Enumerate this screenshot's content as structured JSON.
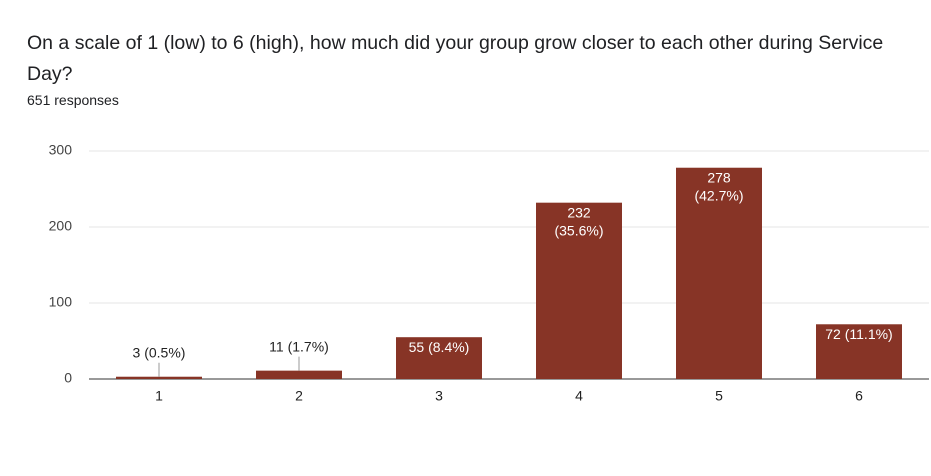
{
  "chart_data": {
    "type": "bar",
    "title": "On a scale of 1 (low) to 6 (high), how much did your group grow closer to each other during Service Day?",
    "subtitle": "651 responses",
    "categories": [
      "1",
      "2",
      "3",
      "4",
      "5",
      "6"
    ],
    "values": [
      3,
      11,
      55,
      232,
      278,
      72
    ],
    "value_labels": [
      "3 (0.5%)",
      "11 (1.7%)",
      "55 (8.4%)",
      "232 (35.6%)",
      "278 (42.7%)",
      "72 (11.1%)"
    ],
    "color": "#873426",
    "ylim": [
      0,
      300
    ],
    "yticks": [
      0,
      100,
      200,
      300
    ],
    "grid": true
  }
}
